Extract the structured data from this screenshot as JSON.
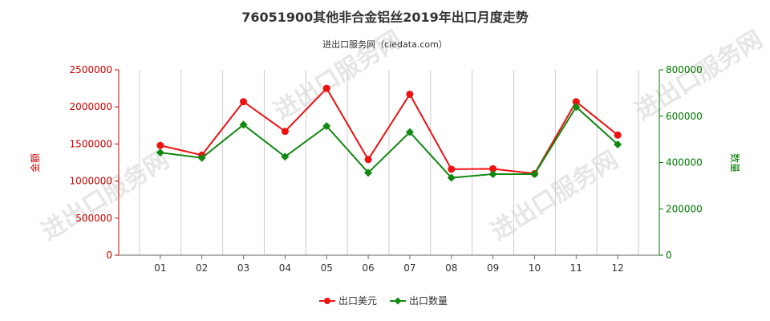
{
  "title": "76051900其他非合金铝丝2019年出口月度走势",
  "subtitle": "进出口服务网（ciedata.com）",
  "watermark": "进出口服务网",
  "colors": {
    "left_axis": "#cc0000",
    "right_axis": "#007700",
    "series_value": "#ee1111",
    "series_quantity": "#118811",
    "grid": "#cccccc"
  },
  "chart_data": {
    "type": "line",
    "title": "76051900其他非合金铝丝2019年出口月度走势",
    "subtitle": "进出口服务网（ciedata.com）",
    "categories": [
      "01",
      "02",
      "03",
      "04",
      "05",
      "06",
      "07",
      "08",
      "09",
      "10",
      "11",
      "12"
    ],
    "grid": "vertical",
    "legend_position": "bottom-center",
    "left_axis": {
      "label": "金额",
      "range": [
        0,
        2500000
      ],
      "ticks": [
        "0",
        "500000",
        "1000000",
        "1500000",
        "2000000",
        "2500000"
      ]
    },
    "right_axis": {
      "label": "数量",
      "range": [
        0,
        800000
      ],
      "ticks": [
        "0",
        "200000",
        "400000",
        "600000",
        "800000"
      ]
    },
    "series": [
      {
        "name": "出口美元",
        "axis": "left",
        "marker": "circle",
        "values": [
          1480000,
          1350000,
          2070000,
          1670000,
          2250000,
          1290000,
          2170000,
          1160000,
          1165000,
          1100000,
          2070000,
          1620000
        ]
      },
      {
        "name": "出口数量",
        "axis": "right",
        "marker": "diamond",
        "values": [
          443000,
          420000,
          563000,
          425000,
          557000,
          356000,
          531000,
          334000,
          350000,
          350000,
          640000,
          478000
        ]
      }
    ]
  }
}
